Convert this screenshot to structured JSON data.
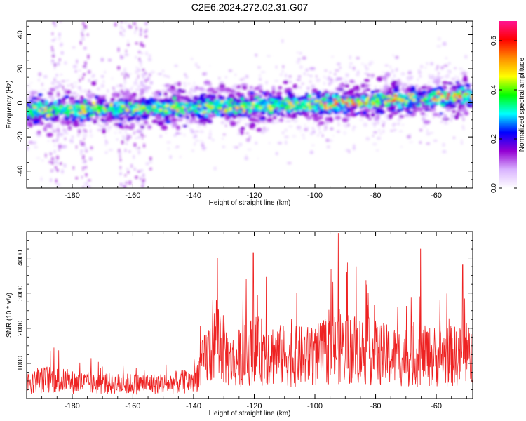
{
  "chart_data": [
    {
      "type": "heatmap",
      "title": "C2E6.2024.272.02.31.G07",
      "xlabel": "Height of straight line (km)",
      "ylabel": "Frequency (Hz)",
      "xlim": [
        -195,
        -48
      ],
      "ylim": [
        -50,
        48
      ],
      "x_ticks": [
        -180,
        -160,
        -140,
        -120,
        -100,
        -80,
        -60
      ],
      "x_tick_labels": [
        "-180",
        "-160",
        "-140",
        "-120",
        "-100",
        "-80",
        "-60"
      ],
      "y_ticks": [
        -40,
        -20,
        0,
        20,
        40
      ],
      "y_tick_labels": [
        "-40",
        "-20",
        "0",
        "20",
        "40"
      ],
      "ridge": {
        "x": [
          -195,
          -150,
          -120,
          -90,
          -70,
          -48
        ],
        "frequency": [
          -5,
          -3,
          -2,
          0,
          2,
          4
        ]
      },
      "colorbar": {
        "label": "Normalized spectral amplitude",
        "range": [
          0.0,
          0.68
        ],
        "ticks": [
          0.0,
          0.2,
          0.4,
          0.6
        ],
        "tick_labels": [
          "0.0",
          "0.2",
          "0.4",
          "0.6"
        ],
        "colors": [
          "#ffffff",
          "#d9b3ff",
          "#9400d3",
          "#0000ff",
          "#00ffff",
          "#00ff00",
          "#ffff00",
          "#ff8c00",
          "#ff0000",
          "#ff1493"
        ]
      },
      "grid": false
    },
    {
      "type": "line",
      "xlabel": "Height of straight line (km)",
      "ylabel": "SNR (10 * v/v)",
      "xlim": [
        -195,
        -48
      ],
      "ylim": [
        0,
        4750
      ],
      "x_ticks": [
        -180,
        -160,
        -140,
        -120,
        -100,
        -80,
        -60
      ],
      "x_tick_labels": [
        "-180",
        "-160",
        "-140",
        "-120",
        "-100",
        "-80",
        "-60"
      ],
      "y_ticks": [
        1000,
        2000,
        3000,
        4000
      ],
      "y_tick_labels": [
        "1000",
        "2000",
        "3000",
        "4000"
      ],
      "color": "#ee2222",
      "series": [
        {
          "x": [
            -195,
            -188,
            -180,
            -170,
            -160,
            -150,
            -140,
            -135,
            -132,
            -128,
            -120,
            -110,
            -100,
            -92,
            -85,
            -75,
            -65,
            -55,
            -48
          ],
          "values": [
            450,
            600,
            500,
            450,
            450,
            450,
            550,
            1400,
            1900,
            1100,
            1500,
            1300,
            1300,
            1600,
            1500,
            1300,
            1300,
            1300,
            1300
          ]
        }
      ],
      "peaks": [
        {
          "x": -132.5,
          "value": 2800
        },
        {
          "x": -120.3,
          "value": 4150
        },
        {
          "x": -116,
          "value": 3450
        },
        {
          "x": -106,
          "value": 3000
        },
        {
          "x": -92.3,
          "value": 4700
        },
        {
          "x": -89.5,
          "value": 3600
        },
        {
          "x": -65.2,
          "value": 4250
        },
        {
          "x": -51.3,
          "value": 3820
        },
        {
          "x": -186,
          "value": 1450
        }
      ],
      "grid": false
    }
  ]
}
